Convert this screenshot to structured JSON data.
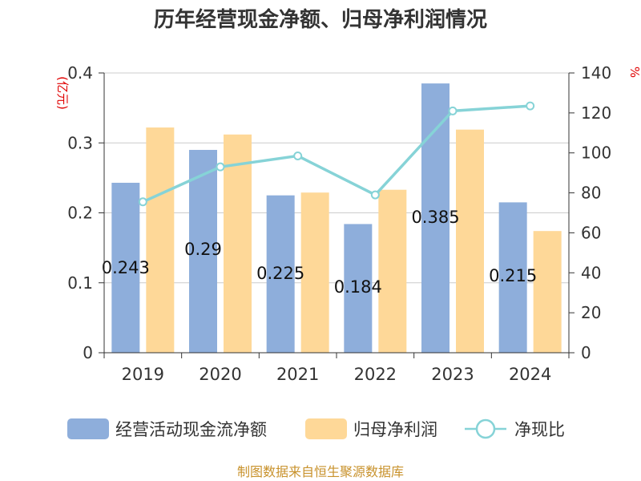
{
  "chart_data": {
    "type": "bar",
    "title": "历年经营现金净额、归母净利润情况",
    "categories": [
      "2019",
      "2020",
      "2021",
      "2022",
      "2023",
      "2024"
    ],
    "left_axis": {
      "unit": "(亿元)",
      "range": [
        0,
        0.4
      ],
      "ticks": [
        "0",
        "0.1",
        "0.2",
        "0.3",
        "0.4"
      ]
    },
    "right_axis": {
      "unit": "%",
      "range": [
        0,
        140
      ],
      "ticks": [
        "0",
        "20",
        "40",
        "60",
        "80",
        "100",
        "120",
        "140"
      ]
    },
    "series": [
      {
        "name": "经营活动现金流净额",
        "type": "bar",
        "axis": "left",
        "color": "#8eaedb",
        "values": [
          0.243,
          0.29,
          0.225,
          0.184,
          0.385,
          0.215
        ],
        "labels": [
          "0.243",
          "0.29",
          "0.225",
          "0.184",
          "0.385",
          "0.215"
        ]
      },
      {
        "name": "归母净利润",
        "type": "bar",
        "axis": "left",
        "color": "#fed898",
        "values": [
          0.322,
          0.312,
          0.229,
          0.233,
          0.319,
          0.174
        ]
      },
      {
        "name": "净现比",
        "type": "line",
        "axis": "right",
        "color": "#86d3d7",
        "values": [
          75.5,
          93,
          98.5,
          79,
          121,
          123.5
        ]
      }
    ],
    "grid": true,
    "legend_position": "bottom"
  },
  "source": "制图数据来自恒生聚源数据库"
}
